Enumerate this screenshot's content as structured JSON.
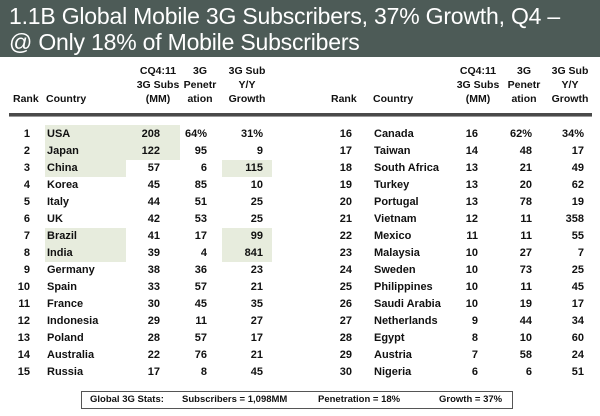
{
  "title": {
    "line1": "1.1B Global Mobile 3G Subscribers, 37% Growth, Q4 –",
    "line2": "@ Only 18% of Mobile Subscribers"
  },
  "headers": {
    "rank": "Rank",
    "country": "Country",
    "subs": [
      "CQ4:11",
      "3G Subs",
      "(MM)"
    ],
    "penetration": [
      "3G",
      "Penetr",
      "ation"
    ],
    "growth": [
      "3G Sub",
      "Y/Y",
      "Growth"
    ]
  },
  "highlight_color": "#e7ecdd",
  "title_bar_color": "#4d5b57",
  "left_table": [
    {
      "rank": "1",
      "country": "USA",
      "subs": "208",
      "pen": "64%",
      "growth": "31%"
    },
    {
      "rank": "2",
      "country": "Japan",
      "subs": "122",
      "pen": "95",
      "growth": "9"
    },
    {
      "rank": "3",
      "country": "China",
      "subs": "57",
      "pen": "6",
      "growth": "115"
    },
    {
      "rank": "4",
      "country": "Korea",
      "subs": "45",
      "pen": "85",
      "growth": "10"
    },
    {
      "rank": "5",
      "country": "Italy",
      "subs": "44",
      "pen": "51",
      "growth": "25"
    },
    {
      "rank": "6",
      "country": "UK",
      "subs": "42",
      "pen": "53",
      "growth": "25"
    },
    {
      "rank": "7",
      "country": "Brazil",
      "subs": "41",
      "pen": "17",
      "growth": "99"
    },
    {
      "rank": "8",
      "country": "India",
      "subs": "39",
      "pen": "4",
      "growth": "841"
    },
    {
      "rank": "9",
      "country": "Germany",
      "subs": "38",
      "pen": "36",
      "growth": "23"
    },
    {
      "rank": "10",
      "country": "Spain",
      "subs": "33",
      "pen": "57",
      "growth": "21"
    },
    {
      "rank": "11",
      "country": "France",
      "subs": "30",
      "pen": "45",
      "growth": "35"
    },
    {
      "rank": "12",
      "country": "Indonesia",
      "subs": "29",
      "pen": "11",
      "growth": "27"
    },
    {
      "rank": "13",
      "country": "Poland",
      "subs": "28",
      "pen": "57",
      "growth": "17"
    },
    {
      "rank": "14",
      "country": "Australia",
      "subs": "22",
      "pen": "76",
      "growth": "21"
    },
    {
      "rank": "15",
      "country": "Russia",
      "subs": "17",
      "pen": "8",
      "growth": "45"
    }
  ],
  "right_table": [
    {
      "rank": "16",
      "country": "Canada",
      "subs": "16",
      "pen": "62%",
      "growth": "34%"
    },
    {
      "rank": "17",
      "country": "Taiwan",
      "subs": "14",
      "pen": "48",
      "growth": "17"
    },
    {
      "rank": "18",
      "country": "South Africa",
      "subs": "13",
      "pen": "21",
      "growth": "49"
    },
    {
      "rank": "19",
      "country": "Turkey",
      "subs": "13",
      "pen": "20",
      "growth": "62"
    },
    {
      "rank": "20",
      "country": "Portugal",
      "subs": "13",
      "pen": "78",
      "growth": "19"
    },
    {
      "rank": "21",
      "country": "Vietnam",
      "subs": "12",
      "pen": "11",
      "growth": "358"
    },
    {
      "rank": "22",
      "country": "Mexico",
      "subs": "11",
      "pen": "11",
      "growth": "55"
    },
    {
      "rank": "23",
      "country": "Malaysia",
      "subs": "10",
      "pen": "27",
      "growth": "7"
    },
    {
      "rank": "24",
      "country": "Sweden",
      "subs": "10",
      "pen": "73",
      "growth": "25"
    },
    {
      "rank": "25",
      "country": "Philippines",
      "subs": "10",
      "pen": "11",
      "growth": "45"
    },
    {
      "rank": "26",
      "country": "Saudi Arabia",
      "subs": "10",
      "pen": "19",
      "growth": "17"
    },
    {
      "rank": "27",
      "country": "Netherlands",
      "subs": "9",
      "pen": "44",
      "growth": "34"
    },
    {
      "rank": "28",
      "country": "Egypt",
      "subs": "8",
      "pen": "10",
      "growth": "60"
    },
    {
      "rank": "29",
      "country": "Austria",
      "subs": "7",
      "pen": "58",
      "growth": "24"
    },
    {
      "rank": "30",
      "country": "Nigeria",
      "subs": "6",
      "pen": "6",
      "growth": "51"
    }
  ],
  "stats": {
    "label": "Global 3G Stats:",
    "subscribers": "Subscribers = 1,098MM",
    "penetration": "Penetration = 18%",
    "growth": "Growth = 37%"
  }
}
